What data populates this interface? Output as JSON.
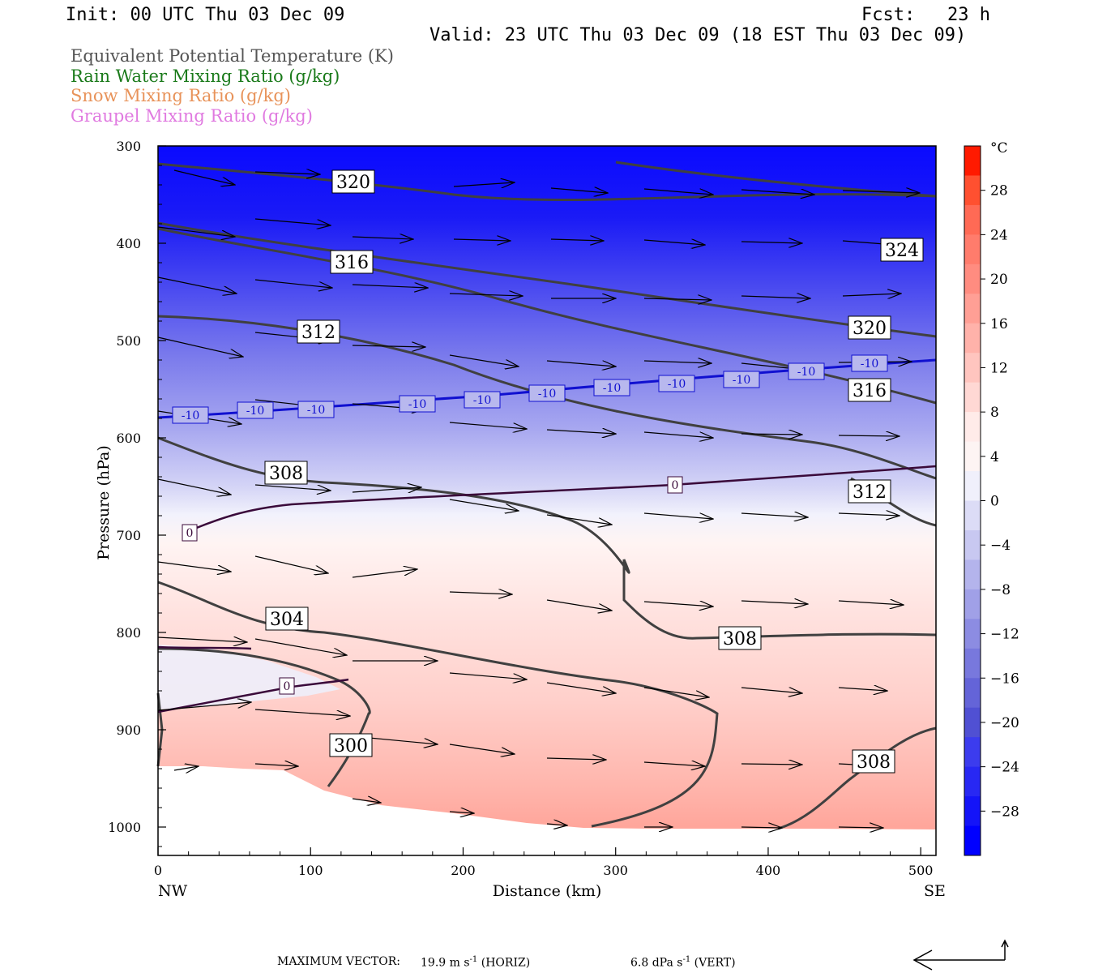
{
  "header": {
    "init": "Init: 00 UTC Thu 03 Dec 09",
    "fcst": "Fcst:   23 h",
    "valid": "Valid: 23 UTC Thu 03 Dec 09 (18 EST Thu 03 Dec 09)"
  },
  "legend": [
    {
      "text": "Equivalent Potential Temperature (K)",
      "color": "#555555"
    },
    {
      "text": "Rain Water Mixing Ratio (g/kg)",
      "color": "#1a7a1a"
    },
    {
      "text": "Snow Mixing Ratio (g/kg)",
      "color": "#e8935a"
    },
    {
      "text": "Graupel Mixing Ratio (g/kg)",
      "color": "#e07ae0"
    }
  ],
  "footer": {
    "max_vector_label": "MAXIMUM VECTOR:",
    "horiz": "19.9 m s",
    "horiz_unit": "(HORIZ)",
    "vert": "6.8 dPa s",
    "vert_unit": "(VERT)",
    "exponent": "-1"
  },
  "chart_data": {
    "type": "cross-section",
    "ylabel": "Pressure (hPa)",
    "xlabel": "Distance (km)",
    "x_ticks": [
      0,
      100,
      200,
      300,
      400,
      500
    ],
    "y_ticks": [
      300,
      400,
      500,
      600,
      700,
      800,
      900,
      1000
    ],
    "xlim": [
      0,
      510
    ],
    "ylim": [
      300,
      1030
    ],
    "y_inverted": true,
    "left_endpoint": "NW",
    "right_endpoint": "SE",
    "colorbar": {
      "unit": "°C",
      "labels": [
        28,
        24,
        20,
        16,
        12,
        8,
        4,
        0,
        -4,
        -8,
        -12,
        -16,
        -20,
        -24,
        -28
      ],
      "colors": [
        "#ff1a00",
        "#ff5030",
        "#ff6a55",
        "#ff7c6c",
        "#ff8c80",
        "#ff9f95",
        "#ffb2aa",
        "#ffc5bf",
        "#ffd8d4",
        "#ffebe9",
        "#fdf4f3",
        "#f0f0fb",
        "#dcdcf6",
        "#c8c8f1",
        "#b4b4ec",
        "#a0a0e7",
        "#8c8ce2",
        "#7878dd",
        "#6464d8",
        "#5050d3",
        "#3c3cee",
        "#2828f3",
        "#1414f8",
        "#0000ff"
      ]
    },
    "theta_e_labels": [
      "320",
      "316",
      "312",
      "308",
      "304",
      "300",
      "324",
      "320",
      "316",
      "312",
      "308",
      "308"
    ],
    "isotherm_labels": [
      "-10",
      "0"
    ],
    "temperature_field_note": "shaded temperature (°C)"
  }
}
